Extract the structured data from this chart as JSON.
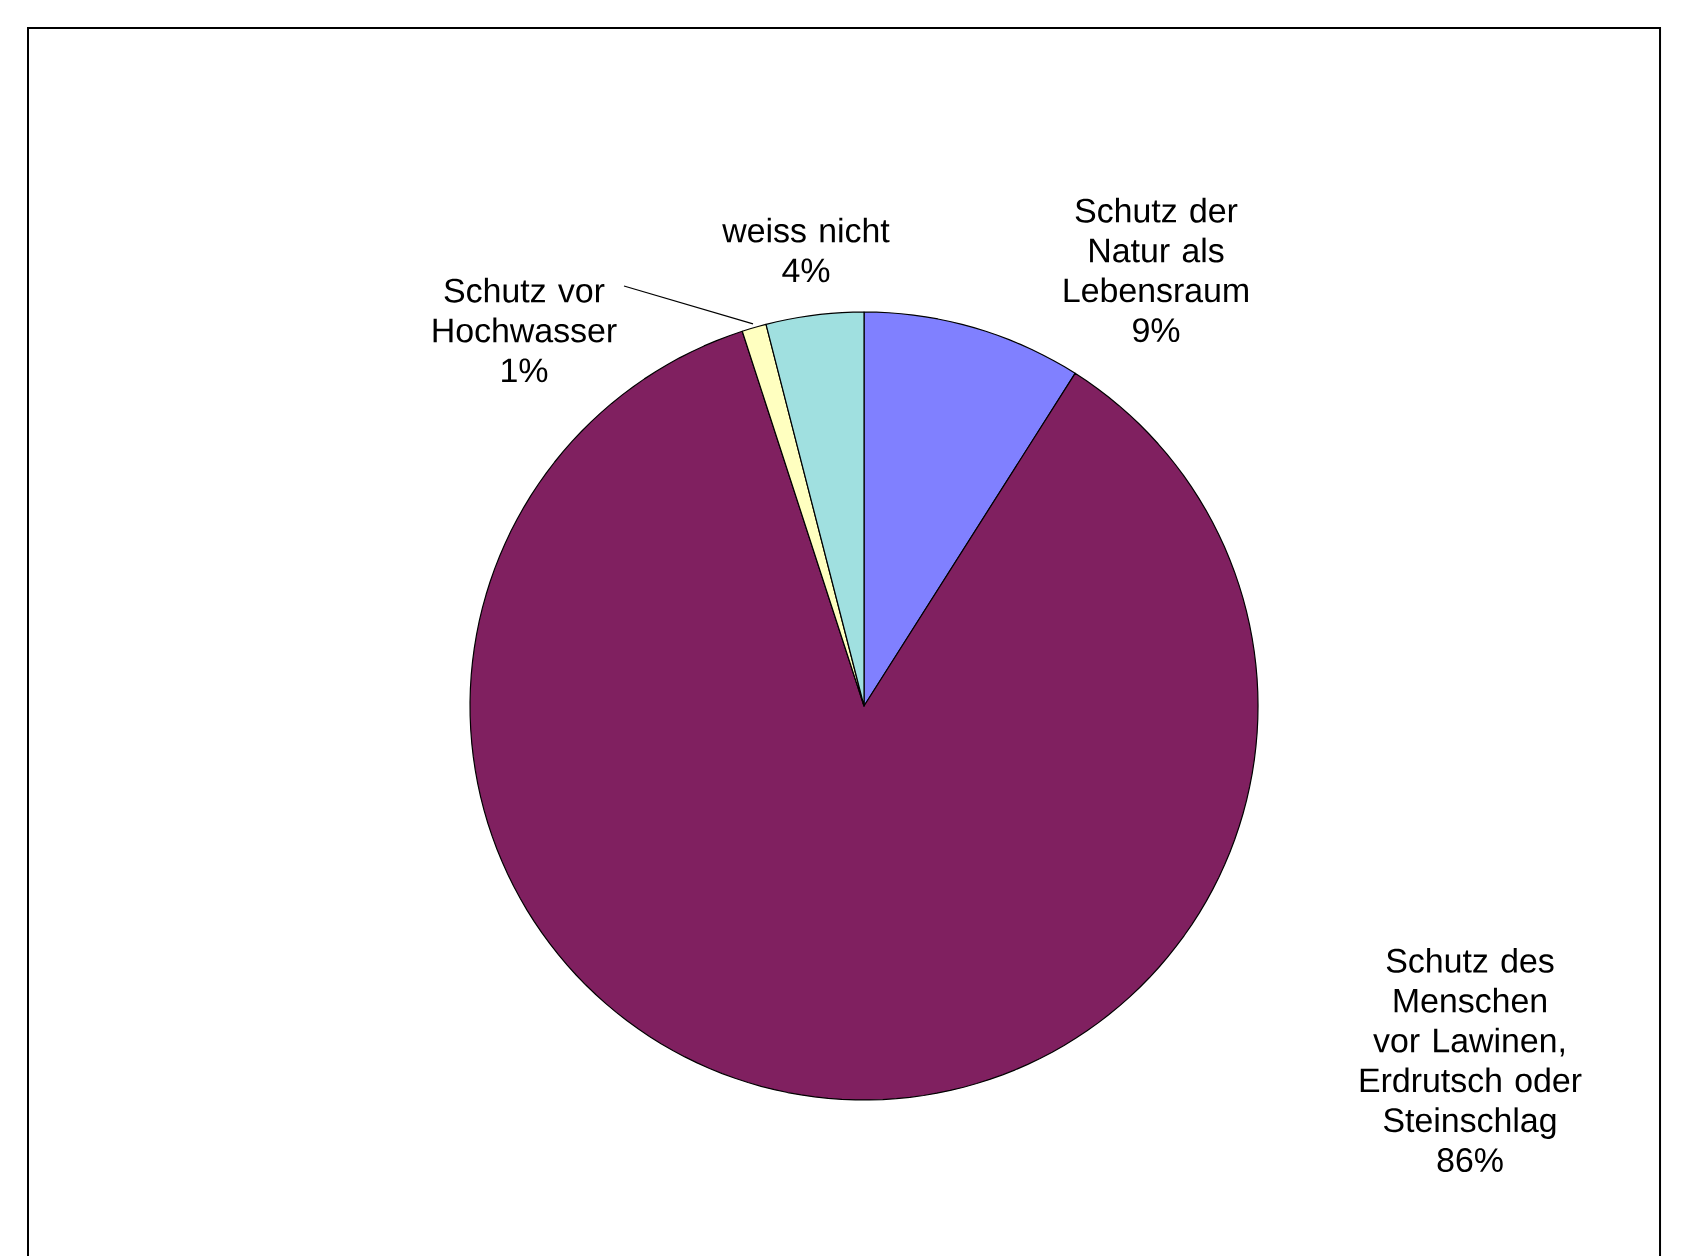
{
  "chart_data": {
    "type": "pie",
    "categories": [
      "Schutz der Natur als Lebensraum",
      "Schutz des Menschen vor Lawinen, Erdrutsch oder Steinschlag",
      "Schutz vor Hochwasser",
      "weiss nicht"
    ],
    "values": [
      9,
      86,
      1,
      4
    ],
    "value_labels": [
      "9%",
      "86%",
      "1%",
      "4%"
    ],
    "colors": [
      "#8080ff",
      "#802060",
      "#ffffc0",
      "#a0e0e0"
    ]
  }
}
